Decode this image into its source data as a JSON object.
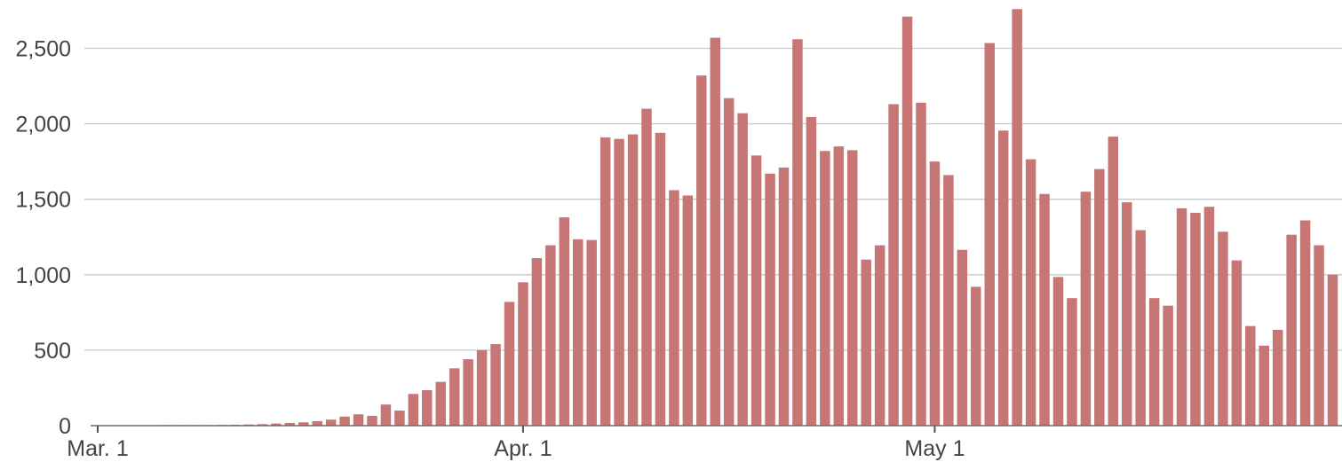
{
  "chart_data": {
    "type": "bar",
    "title": "",
    "xlabel": "",
    "ylabel": "",
    "start_date": "Mar. 1",
    "ylim": [
      0,
      2750
    ],
    "grid": true,
    "bar_color": "#c67775",
    "yticks": [
      {
        "value": 0,
        "label": "0"
      },
      {
        "value": 500,
        "label": "500"
      },
      {
        "value": 1000,
        "label": "1,000"
      },
      {
        "value": 1500,
        "label": "1,500"
      },
      {
        "value": 2000,
        "label": "2,000"
      },
      {
        "value": 2500,
        "label": "2,500"
      }
    ],
    "xticks": [
      {
        "index": 0,
        "label": "Mar. 1"
      },
      {
        "index": 31,
        "label": "Apr. 1"
      },
      {
        "index": 61,
        "label": "May 1"
      }
    ],
    "values": [
      2,
      2,
      2,
      3,
      3,
      4,
      4,
      4,
      4,
      5,
      6,
      8,
      10,
      14,
      18,
      22,
      30,
      40,
      60,
      75,
      65,
      140,
      100,
      210,
      235,
      290,
      380,
      440,
      500,
      540,
      820,
      950,
      1110,
      1195,
      1380,
      1235,
      1230,
      1910,
      1900,
      1930,
      2100,
      1940,
      1560,
      1525,
      2320,
      2570,
      2170,
      2070,
      1790,
      1670,
      1710,
      2560,
      2045,
      1820,
      1850,
      1825,
      1100,
      1195,
      2130,
      2710,
      2140,
      1750,
      1660,
      1165,
      920,
      2535,
      1955,
      2760,
      1765,
      1535,
      985,
      845,
      1550,
      1700,
      1915,
      1480,
      1295,
      845,
      795,
      1440,
      1410,
      1450,
      1285,
      1095,
      660,
      530,
      635,
      1265,
      1360,
      1195,
      1000
    ]
  }
}
